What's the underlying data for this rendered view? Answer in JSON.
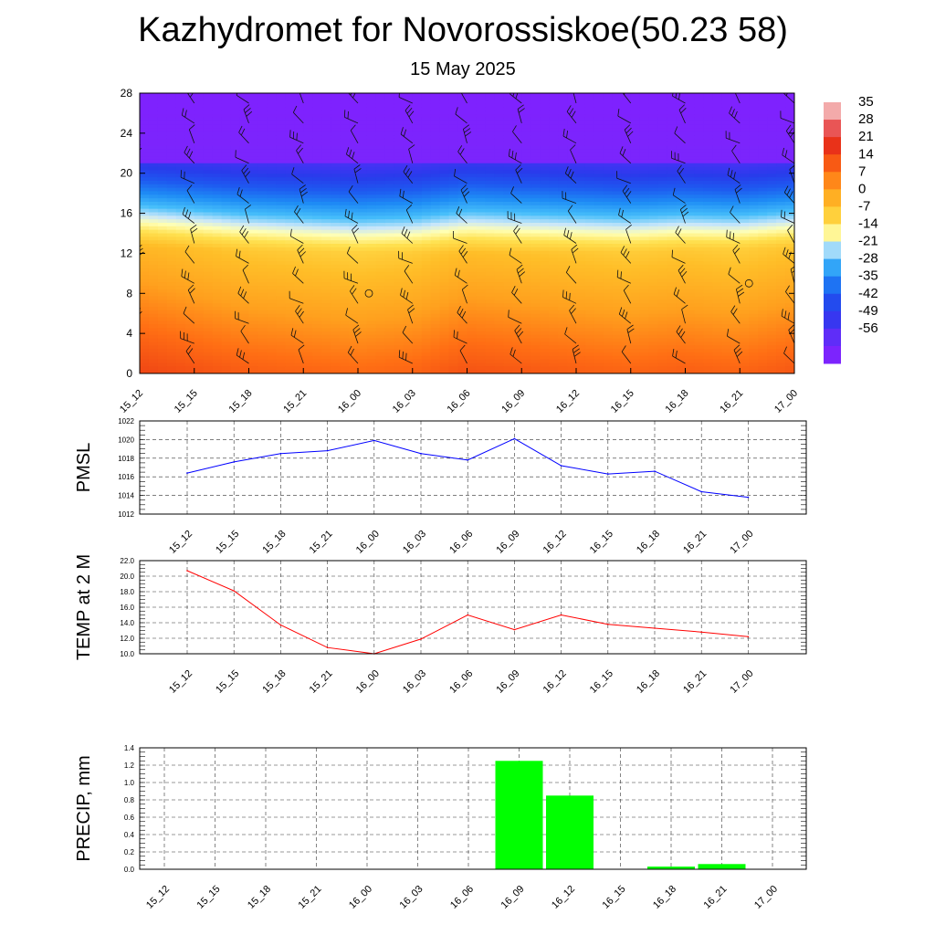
{
  "title": "Kazhydromet for Novorossiskoe(50.23 58)",
  "subtitle": "15 May 2025",
  "time_labels": [
    "15_12",
    "15_15",
    "15_18",
    "15_21",
    "16_00",
    "16_03",
    "16_06",
    "16_09",
    "16_12",
    "16_15",
    "16_18",
    "16_21",
    "17_00"
  ],
  "colors": {
    "pmsl_line": "#0000ff",
    "temp_line": "#ff0000",
    "precip_bar": "#00ff00"
  },
  "chart_data": [
    {
      "type": "heatmap",
      "title": "Kazhydromet for Novorossiskoe(50.23 58)",
      "subtitle": "15 May 2025",
      "x": [
        "15_12",
        "15_15",
        "15_18",
        "15_21",
        "16_00",
        "16_03",
        "16_06",
        "16_09",
        "16_12",
        "16_15",
        "16_18",
        "16_21",
        "17_00"
      ],
      "y_ticks": [
        0,
        4,
        8,
        12,
        16,
        20,
        24,
        28
      ],
      "ylim": [
        0,
        28
      ],
      "colorbar_labels": [
        "35",
        "28",
        "21",
        "14",
        "7",
        "0",
        "-7",
        "-14",
        "-21",
        "-28",
        "-35",
        "-42",
        "-49",
        "-56"
      ],
      "colorbar_range": [
        -63,
        42
      ],
      "surface_temperature": [
        21,
        19,
        17,
        16,
        15,
        16,
        19,
        18,
        17,
        16,
        17,
        16,
        18
      ],
      "wind_barbs": true
    },
    {
      "type": "line",
      "ylabel": "PMSL",
      "x": [
        "15_12",
        "15_15",
        "15_18",
        "15_21",
        "16_00",
        "16_03",
        "16_06",
        "16_09",
        "16_12",
        "16_15",
        "16_18",
        "16_21",
        "17_00"
      ],
      "values": [
        1016.4,
        1017.6,
        1018.5,
        1018.8,
        1019.9,
        1018.5,
        1017.8,
        1020.1,
        1017.2,
        1016.3,
        1016.6,
        1014.4,
        1013.8
      ],
      "ylim": [
        1012,
        1022
      ],
      "y_ticks": [
        "1012",
        "1014",
        "1016",
        "1018",
        "1020",
        "1022"
      ],
      "grid": true
    },
    {
      "type": "line",
      "ylabel": "TEMP at 2 M",
      "x": [
        "15_12",
        "15_15",
        "15_18",
        "15_21",
        "16_00",
        "16_03",
        "16_06",
        "16_09",
        "16_12",
        "16_15",
        "16_18",
        "16_21",
        "17_00"
      ],
      "values": [
        20.7,
        18.1,
        13.7,
        10.8,
        10.0,
        11.9,
        15.0,
        13.1,
        15.0,
        13.8,
        13.3,
        12.8,
        12.2
      ],
      "ylim": [
        10,
        22
      ],
      "y_ticks": [
        "10.0",
        "12.0",
        "14.0",
        "16.0",
        "18.0",
        "20.0",
        "22.0"
      ],
      "grid": true
    },
    {
      "type": "bar",
      "ylabel": "PRECIP, mm",
      "x": [
        "15_12",
        "15_15",
        "15_18",
        "15_21",
        "16_00",
        "16_03",
        "16_06",
        "16_09",
        "16_12",
        "16_15",
        "16_18",
        "16_21",
        "17_00"
      ],
      "values": [
        0,
        0,
        0,
        0,
        0,
        0,
        0,
        1.25,
        0.85,
        0,
        0.03,
        0.06,
        0
      ],
      "ylim": [
        0,
        1.4
      ],
      "y_ticks": [
        "0.0",
        "0.2",
        "0.4",
        "0.6",
        "0.8",
        "1.0",
        "1.2",
        "1.4"
      ],
      "grid": true
    }
  ]
}
